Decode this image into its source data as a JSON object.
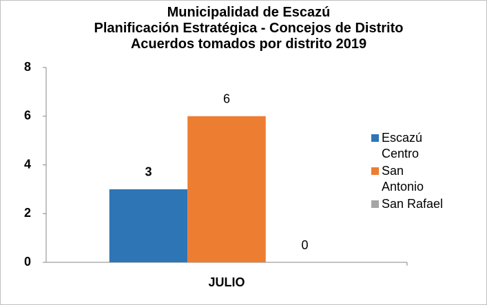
{
  "chart_data": {
    "type": "bar",
    "title": "Municipalidad de Escazú\nPlanificación Estratégica - Concejos de Distrito\nAcuerdos tomados por distrito 2019",
    "categories": [
      "JULIO"
    ],
    "series": [
      {
        "name": "Escazú Centro",
        "color": "#2e75b6",
        "values": [
          3
        ]
      },
      {
        "name": "San Antonio",
        "color": "#ed7d31",
        "values": [
          6
        ]
      },
      {
        "name": "San Rafael",
        "color": "#a5a5a5",
        "values": [
          0
        ]
      }
    ],
    "ylim": [
      0,
      8
    ],
    "yticks": [
      0,
      2,
      4,
      6,
      8
    ],
    "grid": false,
    "legend": "right"
  }
}
